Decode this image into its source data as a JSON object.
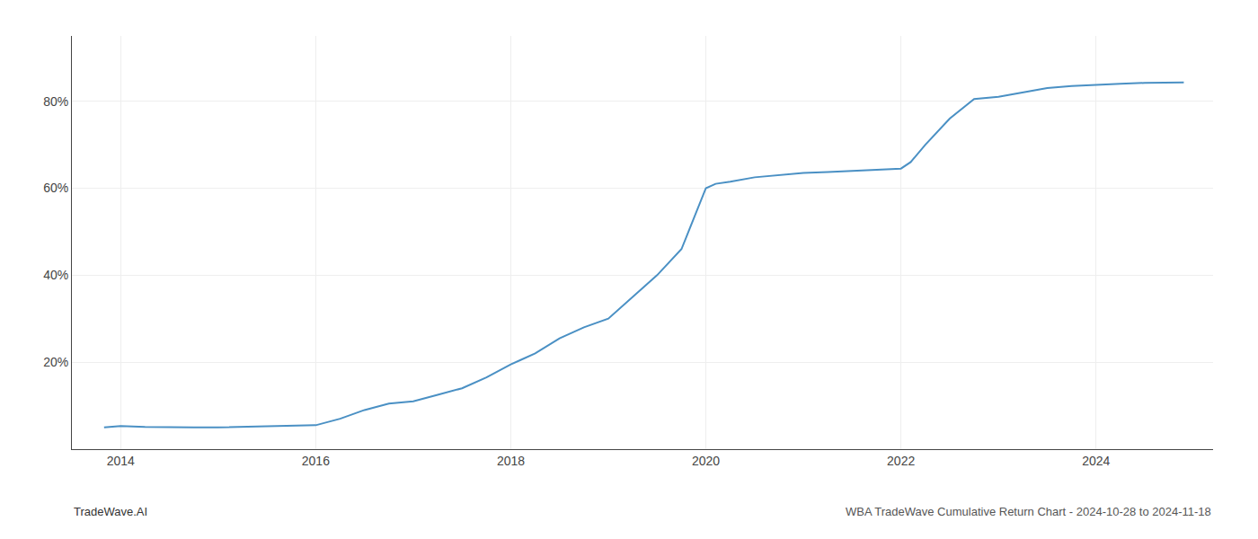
{
  "chart_data": {
    "type": "line",
    "x": [
      2013.83,
      2014.0,
      2014.25,
      2014.5,
      2014.75,
      2015.0,
      2015.25,
      2015.5,
      2015.75,
      2016.0,
      2016.25,
      2016.5,
      2016.75,
      2017.0,
      2017.25,
      2017.5,
      2017.75,
      2018.0,
      2018.1,
      2018.25,
      2018.5,
      2018.75,
      2019.0,
      2019.25,
      2019.5,
      2019.75,
      2020.0,
      2020.1,
      2020.25,
      2020.5,
      2020.75,
      2021.0,
      2021.25,
      2021.5,
      2021.75,
      2022.0,
      2022.1,
      2022.25,
      2022.5,
      2022.75,
      2023.0,
      2023.25,
      2023.5,
      2023.75,
      2024.0,
      2024.25,
      2024.5,
      2024.75,
      2024.9
    ],
    "values": [
      5.0,
      5.3,
      5.1,
      5.0,
      5.0,
      5.0,
      5.1,
      5.2,
      5.3,
      5.5,
      7.0,
      9.0,
      10.5,
      11.0,
      12.5,
      14.0,
      16.5,
      19.5,
      20.5,
      22.0,
      25.5,
      28.0,
      30.0,
      35.0,
      40.0,
      46.0,
      60.0,
      61.0,
      61.5,
      62.5,
      63.0,
      63.5,
      63.7,
      64.0,
      64.2,
      64.5,
      66.0,
      70.0,
      76.0,
      80.5,
      81.0,
      82.0,
      83.0,
      83.5,
      83.8,
      84.0,
      84.2,
      84.3,
      84.3
    ],
    "color": "#4a90c4",
    "xlim": [
      2013.5,
      2025.2
    ],
    "ylim": [
      0,
      95
    ],
    "xticks": [
      2014,
      2016,
      2018,
      2020,
      2022,
      2024
    ],
    "yticks": [
      {
        "value": 20,
        "label": "20%"
      },
      {
        "value": 40,
        "label": "40%"
      },
      {
        "value": 60,
        "label": "60%"
      },
      {
        "value": 80,
        "label": "80%"
      }
    ],
    "grid": true,
    "annotations": [
      "TradeWave.AI",
      "WBA TradeWave Cumulative Return Chart - 2024-10-28 to 2024-11-18"
    ]
  }
}
